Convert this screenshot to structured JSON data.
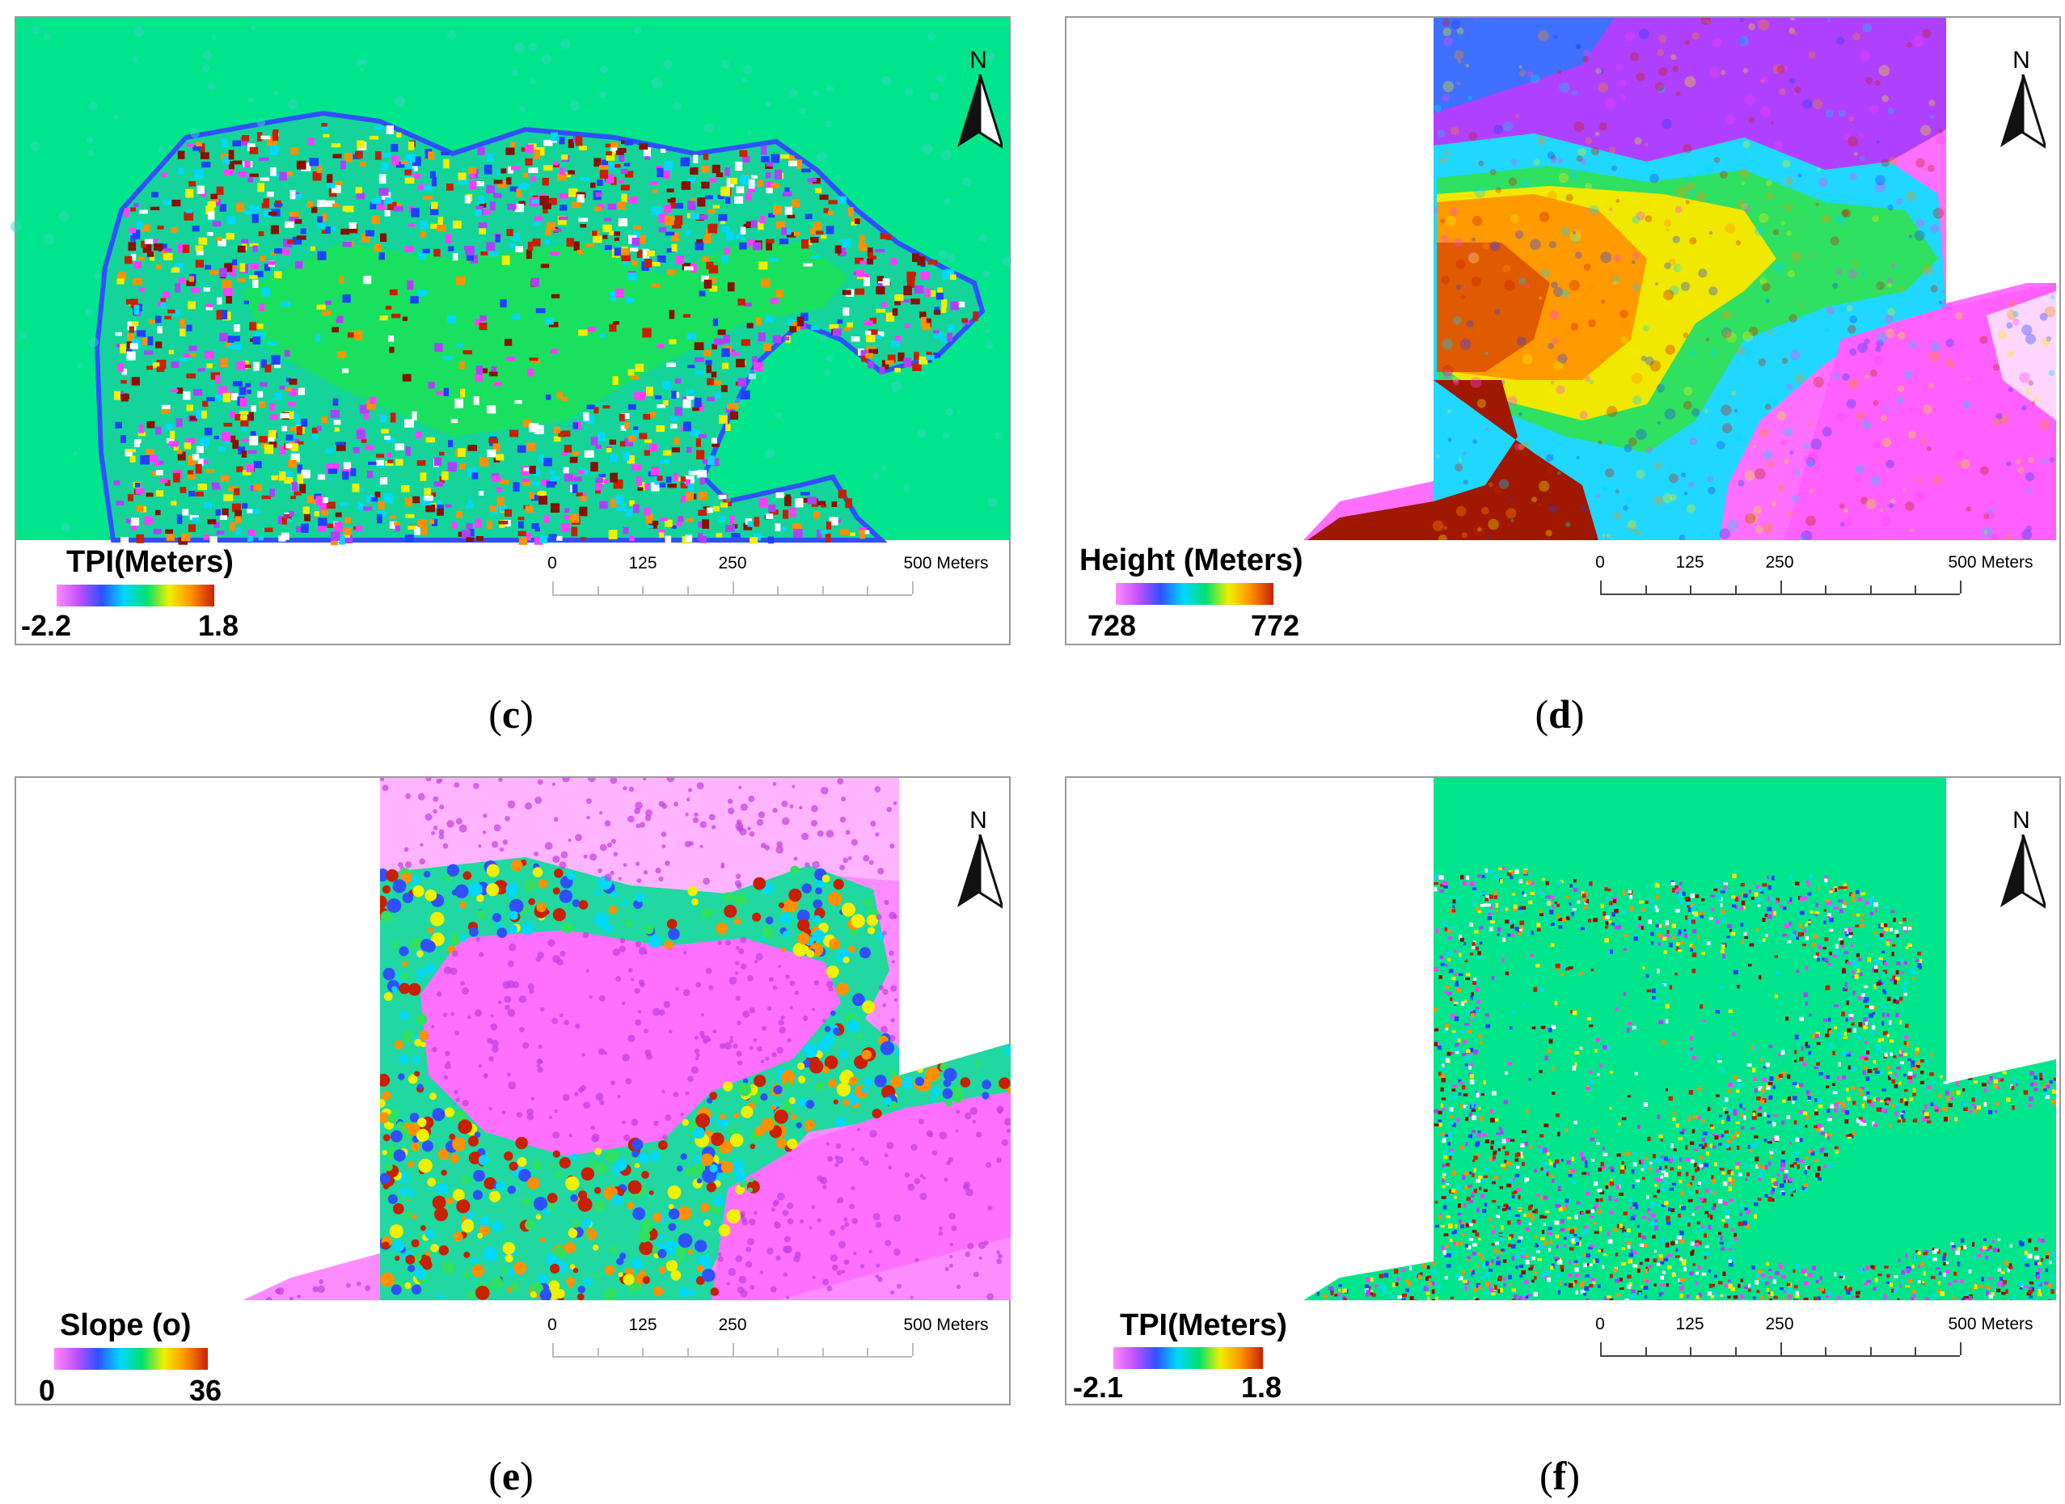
{
  "panels": [
    {
      "id": "c",
      "caption_open": "(",
      "caption_letter": "c",
      "caption_close": ")",
      "legend_title": "TPI(Meters)",
      "legend_min": "-2.2",
      "legend_max": "1.8",
      "legend_colors": [
        "#ff8cff",
        "#c050ff",
        "#3050ff",
        "#00d8ff",
        "#00e070",
        "#f0f000",
        "#ff9000",
        "#c82000"
      ],
      "scale_labels": [
        "0",
        "125",
        "250",
        "500 Meters"
      ],
      "north_label": "N",
      "map_type": "tpi-dense"
    },
    {
      "id": "d",
      "caption_open": "(",
      "caption_letter": "d",
      "caption_close": ")",
      "legend_title": "Height (Meters)",
      "legend_min": "728",
      "legend_max": "772",
      "legend_colors": [
        "#ff8cff",
        "#c050ff",
        "#3050ff",
        "#00d8ff",
        "#00e070",
        "#f0f000",
        "#ff9000",
        "#c82000"
      ],
      "scale_labels": [
        "0",
        "125",
        "250",
        "500 Meters"
      ],
      "north_label": "N",
      "map_type": "height"
    },
    {
      "id": "e",
      "caption_open": "(",
      "caption_letter": "e",
      "caption_close": ")",
      "legend_title": "Slope (o)",
      "legend_min": "0",
      "legend_max": "36",
      "legend_colors": [
        "#ff8cff",
        "#c050ff",
        "#3050ff",
        "#00d8ff",
        "#00e070",
        "#f0f000",
        "#ff9000",
        "#c82000"
      ],
      "scale_labels": [
        "0",
        "125",
        "250",
        "500 Meters"
      ],
      "north_label": "N",
      "map_type": "slope"
    },
    {
      "id": "f",
      "caption_open": "(",
      "caption_letter": "f",
      "caption_close": ")",
      "legend_title": "TPI(Meters)",
      "legend_min": "-2.1",
      "legend_max": "1.8",
      "legend_colors": [
        "#ff8cff",
        "#c050ff",
        "#3050ff",
        "#00d8ff",
        "#00e070",
        "#f0f000",
        "#ff9000",
        "#c82000"
      ],
      "scale_labels": [
        "0",
        "125",
        "250",
        "500 Meters"
      ],
      "north_label": "N",
      "map_type": "tpi-fine"
    }
  ]
}
